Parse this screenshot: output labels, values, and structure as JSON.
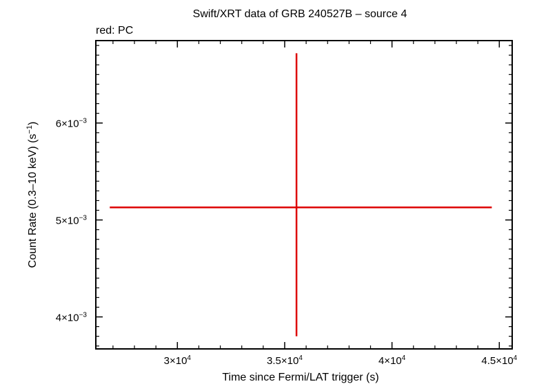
{
  "chart_data": {
    "type": "scatter",
    "title": "Swift/XRT data of GRB 240527B – source 4",
    "subtitle": "red: PC",
    "xlabel": "Time since Fermi/LAT trigger (s)",
    "ylabel_main": "Count Rate (0.3–10 keV) (s",
    "ylabel_sup": "−1",
    "ylabel_end": ")",
    "xlim": [
      26200,
      45600
    ],
    "ylim": [
      0.00367,
      0.00685
    ],
    "x_ticks": [
      {
        "value": 30000,
        "mant": "3",
        "exp": "4"
      },
      {
        "value": 35000,
        "mant": "3.5",
        "exp": "4"
      },
      {
        "value": 40000,
        "mant": "4",
        "exp": "4"
      },
      {
        "value": 45000,
        "mant": "4.5",
        "exp": "4"
      }
    ],
    "y_ticks": [
      {
        "value": 0.004,
        "mant": "4",
        "exp": "−3"
      },
      {
        "value": 0.005,
        "mant": "5",
        "exp": "−3"
      },
      {
        "value": 0.006,
        "mant": "6",
        "exp": "−3"
      }
    ],
    "series": [
      {
        "mode": "PC",
        "color": "#dd0000",
        "points": [
          {
            "x": 35550,
            "xmin": 26850,
            "xmax": 44650,
            "y": 0.00513,
            "ymin": 0.0038,
            "ymax": 0.00672
          }
        ]
      }
    ]
  }
}
